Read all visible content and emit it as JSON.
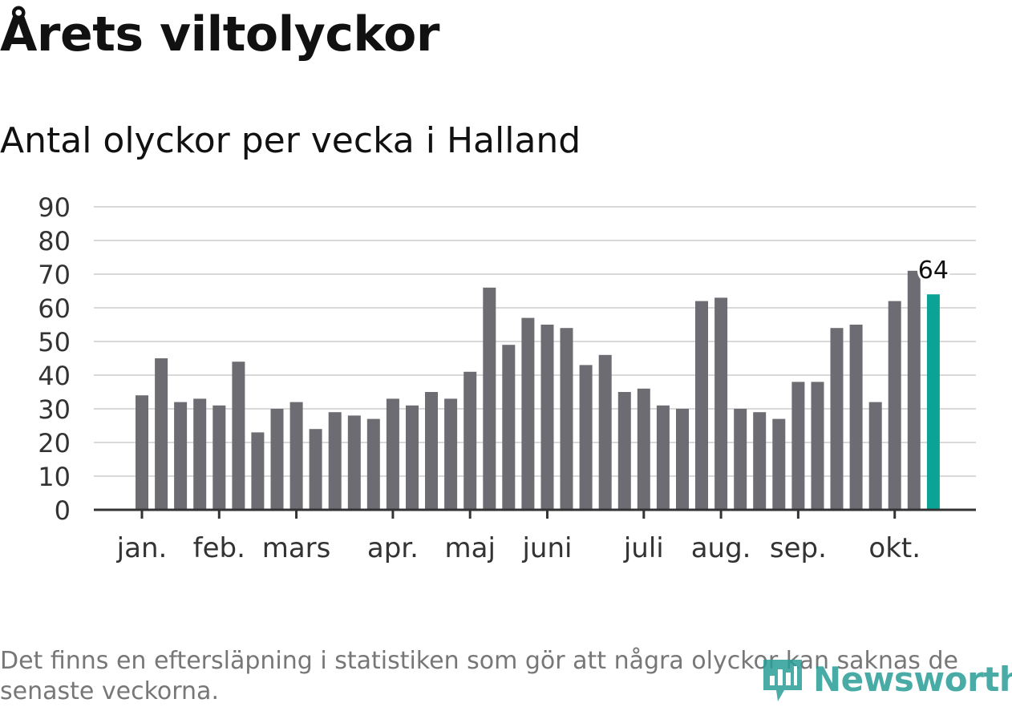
{
  "title": "Årets viltolyckor",
  "subtitle": "Antal olyckor per vecka i Halland",
  "note": "Det finns en eftersläpning i statistiken som gör att några olyckor kan saknas de senaste veckorna.",
  "logo": {
    "text": "Newsworthy",
    "icon": "newsworthy-logo-icon"
  },
  "colors": {
    "bar": "#6d6c72",
    "highlight": "#0aa396",
    "grid": "#d9d9d9",
    "axis": "#333333",
    "text": "#333333"
  },
  "chart_data": {
    "type": "bar",
    "title": "Årets viltolyckor",
    "subtitle": "Antal olyckor per vecka i Halland",
    "xlabel": "",
    "ylabel": "",
    "ylim": [
      0,
      90
    ],
    "yticks": [
      "0",
      "10",
      "20",
      "30",
      "40",
      "50",
      "60",
      "70",
      "80",
      "90"
    ],
    "grid": true,
    "values": [
      34,
      45,
      32,
      33,
      31,
      44,
      23,
      30,
      32,
      24,
      29,
      28,
      27,
      33,
      31,
      35,
      33,
      41,
      66,
      49,
      57,
      55,
      54,
      43,
      46,
      35,
      36,
      31,
      30,
      62,
      63,
      30,
      29,
      27,
      38,
      38,
      54,
      55,
      32,
      62,
      71,
      64
    ],
    "highlight_index": 41,
    "highlight_label": "64",
    "month_labels": [
      {
        "label": "jan.",
        "week_index": 0
      },
      {
        "label": "feb.",
        "week_index": 4
      },
      {
        "label": "mars",
        "week_index": 8
      },
      {
        "label": "apr.",
        "week_index": 13
      },
      {
        "label": "maj",
        "week_index": 17
      },
      {
        "label": "juni",
        "week_index": 21
      },
      {
        "label": "juli",
        "week_index": 26
      },
      {
        "label": "aug.",
        "week_index": 30
      },
      {
        "label": "sep.",
        "week_index": 34
      },
      {
        "label": "okt.",
        "week_index": 39
      }
    ]
  }
}
